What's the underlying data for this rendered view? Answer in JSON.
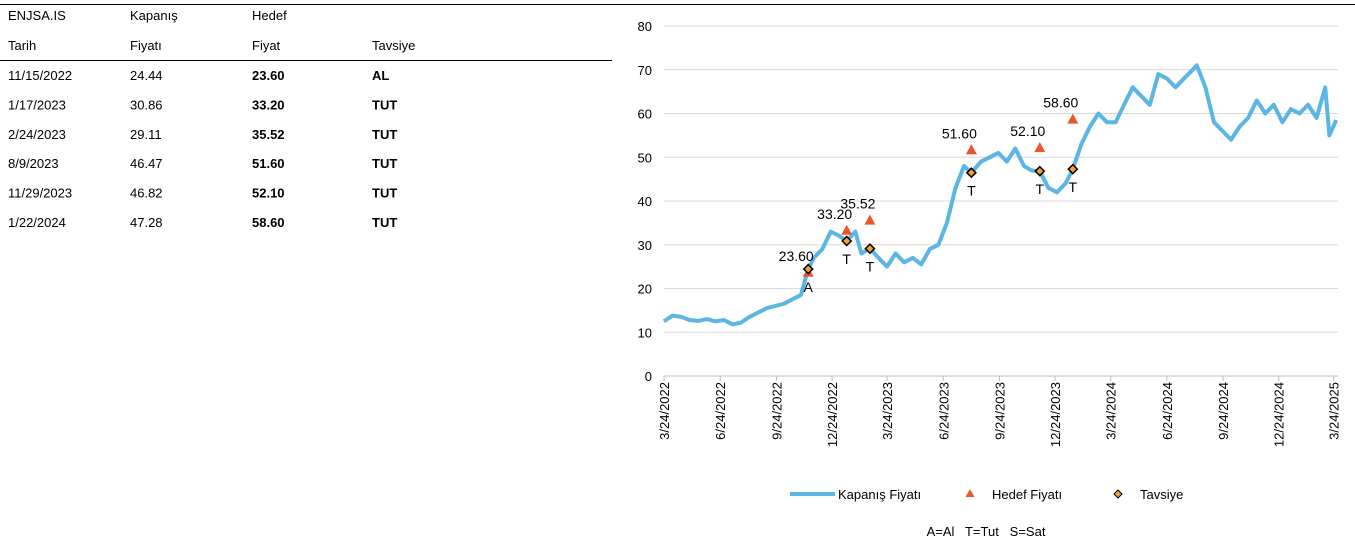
{
  "table": {
    "header": [
      [
        "ENJSA.IS",
        "Kapanış",
        "Hedef",
        ""
      ],
      [
        "Tarih",
        "Fiyatı",
        "Fiyat",
        "Tavsiye"
      ]
    ],
    "rows": [
      [
        "11/15/2022",
        "24.44",
        "23.60",
        "AL"
      ],
      [
        "1/17/2023",
        "30.86",
        "33.20",
        "TUT"
      ],
      [
        "2/24/2023",
        "29.11",
        "35.52",
        "TUT"
      ],
      [
        "8/9/2023",
        "46.47",
        "51.60",
        "TUT"
      ],
      [
        "11/29/2023",
        "46.82",
        "52.10",
        "TUT"
      ],
      [
        "1/22/2024",
        "47.28",
        "58.60",
        "TUT"
      ]
    ]
  },
  "chart_data": {
    "type": "line",
    "xlim": [
      "3/24/2022",
      "3/31/2025"
    ],
    "xticks": [
      "3/24/2022",
      "6/24/2022",
      "9/24/2022",
      "12/24/2022",
      "3/24/2023",
      "6/24/2023",
      "9/24/2023",
      "12/24/2023",
      "3/24/2024",
      "6/24/2024",
      "9/24/2024",
      "12/24/2024",
      "3/24/2025"
    ],
    "ylim": [
      0,
      80
    ],
    "yticks": [
      0,
      10,
      20,
      30,
      40,
      50,
      60,
      70,
      80
    ],
    "grid": true,
    "series": [
      {
        "name": "Kapanış Fiyatı",
        "color": "#5bb5e5",
        "mark": "line",
        "x": [
          "3/24/2022",
          "4/7/2022",
          "4/21/2022",
          "5/5/2022",
          "5/19/2022",
          "6/2/2022",
          "6/16/2022",
          "6/30/2022",
          "7/14/2022",
          "7/28/2022",
          "8/11/2022",
          "8/25/2022",
          "9/8/2022",
          "9/22/2022",
          "10/6/2022",
          "10/20/2022",
          "11/3/2022",
          "11/15/2022",
          "11/24/2022",
          "12/8/2022",
          "12/22/2022",
          "1/5/2023",
          "1/17/2023",
          "1/31/2023",
          "2/10/2023",
          "2/24/2023",
          "3/10/2023",
          "3/24/2023",
          "4/7/2023",
          "4/21/2023",
          "5/5/2023",
          "5/19/2023",
          "6/2/2023",
          "6/16/2023",
          "6/30/2023",
          "7/14/2023",
          "7/28/2023",
          "8/9/2023",
          "8/25/2023",
          "9/8/2023",
          "9/22/2023",
          "10/6/2023",
          "10/20/2023",
          "11/3/2023",
          "11/15/2023",
          "11/29/2023",
          "12/13/2023",
          "12/27/2023",
          "1/10/2024",
          "1/22/2024",
          "2/5/2024",
          "2/19/2024",
          "3/4/2024",
          "3/18/2024",
          "4/1/2024",
          "4/15/2024",
          "4/29/2024",
          "5/13/2024",
          "5/27/2024",
          "6/10/2024",
          "6/24/2024",
          "7/8/2024",
          "7/22/2024",
          "8/5/2024",
          "8/12/2024",
          "8/26/2024",
          "9/9/2024",
          "9/23/2024",
          "10/7/2024",
          "10/21/2024",
          "11/4/2024",
          "11/18/2024",
          "12/2/2024",
          "12/16/2024",
          "12/30/2024",
          "1/13/2025",
          "1/27/2025",
          "2/10/2025",
          "2/24/2025",
          "3/10/2025",
          "3/17/2025",
          "3/28/2025"
        ],
        "values": [
          12.5,
          13.8,
          13.5,
          12.8,
          12.6,
          13.0,
          12.5,
          12.8,
          11.8,
          12.2,
          13.5,
          14.5,
          15.5,
          16.0,
          16.5,
          17.5,
          18.5,
          24.44,
          27,
          29,
          33,
          32,
          30.86,
          33,
          28,
          29.11,
          27,
          25,
          28,
          26,
          27,
          25.5,
          29,
          30,
          35,
          43,
          48,
          46.47,
          49,
          50,
          51,
          49,
          52,
          48,
          47,
          46.82,
          43,
          42,
          44,
          47.28,
          53,
          57,
          60,
          58,
          58,
          62,
          66,
          64,
          62,
          69,
          68,
          66,
          68,
          70,
          71,
          66,
          58,
          56,
          54,
          57,
          59,
          63,
          60,
          62,
          58,
          61,
          60,
          62,
          59,
          66,
          55,
          58.5
        ]
      },
      {
        "name": "Hedef Fiyatı",
        "color": "#e8582a",
        "mark": "triangle",
        "x": [
          "11/15/2022",
          "1/17/2023",
          "2/24/2023",
          "8/9/2023",
          "11/29/2023",
          "1/22/2024"
        ],
        "values": [
          23.6,
          33.2,
          35.52,
          51.6,
          52.1,
          58.6
        ],
        "value_labels": [
          "23.60",
          "33.20",
          "35.52",
          "51.60",
          "52.10",
          "58.60"
        ]
      },
      {
        "name": "Tavsiye",
        "color": "#f0a030",
        "mark": "diamond",
        "x": [
          "11/15/2022",
          "1/17/2023",
          "2/24/2023",
          "8/9/2023",
          "11/29/2023",
          "1/22/2024"
        ],
        "values": [
          24.44,
          30.86,
          29.11,
          46.47,
          46.82,
          47.28
        ],
        "labels": [
          "A",
          "T",
          "T",
          "T",
          "T",
          "T"
        ]
      }
    ],
    "note": "A=Al   T=Tut   S=Sat"
  }
}
